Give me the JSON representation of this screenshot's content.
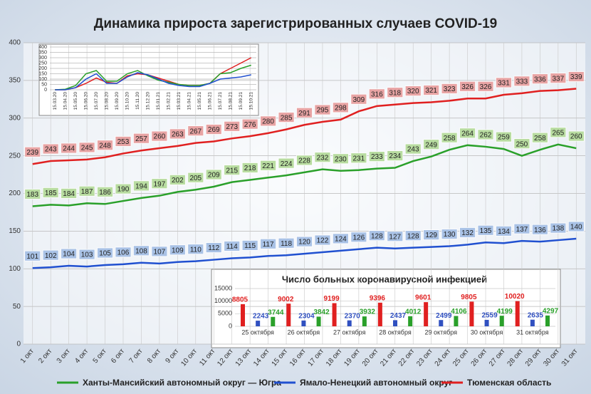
{
  "chart_data": [
    {
      "type": "line",
      "title": "Динамика прироста зарегистрированных случаев COVID-19",
      "categories": [
        "1 окт",
        "2 окт",
        "3 окт",
        "4 окт",
        "5 окт",
        "6 окт",
        "7 окт",
        "8 окт",
        "9 окт",
        "10 окт",
        "11 окт",
        "12 окт",
        "13 окт",
        "14 окт",
        "15 окт",
        "16 окт",
        "17 окт",
        "18 окт",
        "19 окт",
        "20 окт",
        "21 окт",
        "22 окт",
        "23 окт",
        "24 окт",
        "25 окт",
        "26 окт",
        "27 окт",
        "28 окт",
        "29 окт",
        "30 окт",
        "31 окт"
      ],
      "series": [
        {
          "name": "Ханты-Мансийский автономный округ — Югра",
          "color": "#2aa02a",
          "label_color": "#b8dca0",
          "values": [
            183,
            185,
            184,
            187,
            186,
            190,
            194,
            197,
            202,
            205,
            209,
            215,
            218,
            221,
            224,
            228,
            232,
            230,
            231,
            233,
            234,
            243,
            249,
            258,
            264,
            262,
            259,
            250,
            258,
            265,
            260
          ]
        },
        {
          "name": "Ямало-Ненецкий автономный округ",
          "color": "#2050d0",
          "label_color": "#a9c2e6",
          "values": [
            101,
            102,
            104,
            103,
            105,
            106,
            108,
            107,
            109,
            110,
            112,
            114,
            115,
            117,
            118,
            120,
            122,
            124,
            126,
            128,
            127,
            128,
            129,
            130,
            132,
            135,
            134,
            137,
            136,
            138,
            140
          ]
        },
        {
          "name": "Тюменская область",
          "color": "#e02020",
          "label_color": "#e8a4a4",
          "values": [
            239,
            243,
            244,
            245,
            248,
            253,
            257,
            260,
            263,
            267,
            269,
            273,
            276,
            280,
            285,
            291,
            295,
            298,
            309,
            316,
            318,
            320,
            321,
            323,
            326,
            326,
            331,
            333,
            336,
            337,
            339
          ]
        }
      ],
      "ylim": [
        0,
        400
      ],
      "yticks": [
        0,
        50,
        100,
        150,
        200,
        250,
        300,
        350,
        400
      ],
      "grid": true,
      "legend": "bottom"
    },
    {
      "type": "line",
      "categories": [
        "15.03.20",
        "15.04.20",
        "15.05.20",
        "15.06.20",
        "15.07.20",
        "15.08.20",
        "15.09.20",
        "15.10.20",
        "15.11.20",
        "15.12.20",
        "15.01.21",
        "15.02.21",
        "15.03.21",
        "15.04.21",
        "15.05.21",
        "15.06.21",
        "15.07.21",
        "15.08.21",
        "15.09.21",
        "15.10.21"
      ],
      "series": [
        {
          "color": "#e02020",
          "values": [
            0,
            0,
            20,
            60,
            110,
            70,
            60,
            130,
            150,
            140,
            110,
            80,
            50,
            40,
            40,
            60,
            150,
            200,
            250,
            300
          ]
        },
        {
          "color": "#2aa02a",
          "values": [
            0,
            5,
            40,
            150,
            180,
            80,
            80,
            150,
            180,
            130,
            90,
            70,
            50,
            40,
            40,
            60,
            150,
            160,
            200,
            230
          ]
        },
        {
          "color": "#2050d0",
          "values": [
            0,
            0,
            20,
            100,
            150,
            60,
            60,
            120,
            160,
            140,
            100,
            60,
            40,
            30,
            30,
            60,
            100,
            110,
            120,
            140
          ]
        }
      ],
      "ylim": [
        0,
        400
      ],
      "yticks": [
        0,
        50,
        100,
        150,
        200,
        250,
        300,
        350,
        400
      ],
      "grid": true
    },
    {
      "type": "bar",
      "title": "Число больных коронавирусной  инфекцией",
      "categories": [
        "25 октября",
        "26 октября",
        "27 октября",
        "28 октября",
        "29 октября",
        "30 октября",
        "31 октября"
      ],
      "series": [
        {
          "color": "#e02020",
          "values": [
            8805,
            9002,
            9199,
            9396,
            9601,
            9805,
            10020
          ]
        },
        {
          "color": "#3050c0",
          "values": [
            2243,
            2304,
            2370,
            2437,
            2499,
            2559,
            2635
          ]
        },
        {
          "color": "#2aa02a",
          "values": [
            3744,
            3842,
            3932,
            4012,
            4106,
            4199,
            4297
          ]
        }
      ],
      "ylim": [
        0,
        15000
      ],
      "yticks": [
        0,
        5000,
        10000,
        15000
      ],
      "grid": true
    }
  ]
}
